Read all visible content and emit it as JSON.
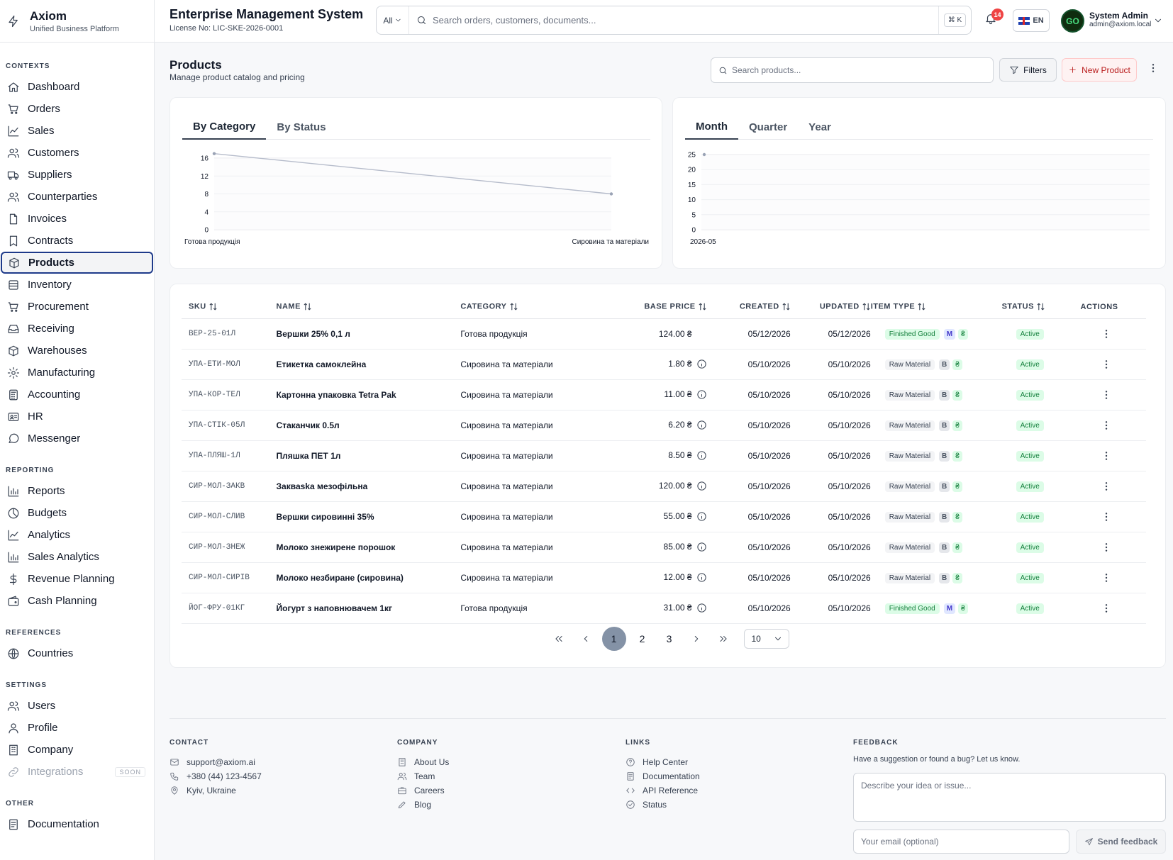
{
  "brand": {
    "name": "Axiom",
    "subtitle": "Unified Business Platform"
  },
  "header": {
    "title": "Enterprise Management System",
    "license": "License No: LIC-SKE-2026-0001",
    "search_scope": "All",
    "search_placeholder": "Search orders, customers, documents...",
    "shortcut": "⌘ K",
    "notifications": "14",
    "language": "EN",
    "user_name": "System Admin",
    "user_email": "admin@axiom.local",
    "avatar_text": "GO"
  },
  "sidebar": {
    "sections": [
      {
        "title": "CONTEXTS",
        "items": [
          {
            "label": "Dashboard",
            "icon": "home-icon"
          },
          {
            "label": "Orders",
            "icon": "cart-icon"
          },
          {
            "label": "Sales",
            "icon": "trend-icon"
          },
          {
            "label": "Customers",
            "icon": "users-icon"
          },
          {
            "label": "Suppliers",
            "icon": "truck-icon"
          },
          {
            "label": "Counterparties",
            "icon": "users-icon"
          },
          {
            "label": "Invoices",
            "icon": "file-icon"
          },
          {
            "label": "Contracts",
            "icon": "bookmark-icon"
          },
          {
            "label": "Products",
            "icon": "box-icon",
            "active": true
          },
          {
            "label": "Inventory",
            "icon": "database-icon"
          },
          {
            "label": "Procurement",
            "icon": "cart-icon"
          },
          {
            "label": "Receiving",
            "icon": "inbox-icon"
          },
          {
            "label": "Warehouses",
            "icon": "box-icon"
          },
          {
            "label": "Manufacturing",
            "icon": "gear-icon"
          },
          {
            "label": "Accounting",
            "icon": "calculator-icon"
          },
          {
            "label": "HR",
            "icon": "id-card-icon"
          },
          {
            "label": "Messenger",
            "icon": "chat-icon"
          }
        ]
      },
      {
        "title": "REPORTING",
        "items": [
          {
            "label": "Reports",
            "icon": "bar-chart-icon"
          },
          {
            "label": "Budgets",
            "icon": "pie-icon"
          },
          {
            "label": "Analytics",
            "icon": "trend-icon"
          },
          {
            "label": "Sales Analytics",
            "icon": "bar-chart-icon"
          },
          {
            "label": "Revenue Planning",
            "icon": "dollar-icon"
          },
          {
            "label": "Cash Planning",
            "icon": "wallet-icon"
          }
        ]
      },
      {
        "title": "REFERENCES",
        "items": [
          {
            "label": "Countries",
            "icon": "globe-icon"
          }
        ]
      },
      {
        "title": "SETTINGS",
        "items": [
          {
            "label": "Users",
            "icon": "users-icon"
          },
          {
            "label": "Profile",
            "icon": "user-icon"
          },
          {
            "label": "Company",
            "icon": "building-icon"
          },
          {
            "label": "Integrations",
            "icon": "link-icon",
            "disabled": true,
            "badge": "SOON"
          }
        ]
      },
      {
        "title": "OTHER",
        "items": [
          {
            "label": "Documentation",
            "icon": "doc-icon"
          }
        ]
      }
    ]
  },
  "page": {
    "title": "Products",
    "subtitle": "Manage product catalog and pricing",
    "search_placeholder": "Search products...",
    "filters_label": "Filters",
    "new_label": "New Product"
  },
  "charts": {
    "left_tabs": [
      "By Category",
      "By Status"
    ],
    "right_tabs": [
      "Month",
      "Quarter",
      "Year"
    ]
  },
  "chart_data": [
    {
      "type": "line",
      "categories": [
        "Готова продукція",
        "Сировина та матеріали"
      ],
      "values": [
        17,
        8
      ],
      "yticks": [
        0,
        4,
        8,
        12,
        16
      ],
      "ylim": [
        0,
        16
      ],
      "grid": true
    },
    {
      "type": "line",
      "categories": [
        "2026-05"
      ],
      "values": [
        25
      ],
      "yticks": [
        0,
        5,
        10,
        15,
        20,
        25
      ],
      "ylim": [
        0,
        25
      ],
      "grid": true
    }
  ],
  "table": {
    "columns": [
      "SKU",
      "NAME",
      "CATEGORY",
      "BASE PRICE",
      "CREATED",
      "UPDATED",
      "ITEM TYPE",
      "STATUS",
      "ACTIONS"
    ],
    "rows": [
      {
        "sku": "ВЕР-25-01Л",
        "name": "Вершки 25% 0,1 л",
        "category": "Готова продукція",
        "price": "124.00 ₴",
        "info": false,
        "created": "05/12/2026",
        "updated": "05/12/2026",
        "type": "Finished Good",
        "type_code": "M",
        "currency": "₴",
        "status": "Active"
      },
      {
        "sku": "УПА-ЕТИ-МОЛ",
        "name": "Етикетка самоклейна",
        "category": "Сировина та матеріали",
        "price": "1.80 ₴",
        "info": true,
        "created": "05/10/2026",
        "updated": "05/10/2026",
        "type": "Raw Material",
        "type_code": "B",
        "currency": "₴",
        "status": "Active"
      },
      {
        "sku": "УПА-КОР-ТЕЛ",
        "name": "Картонна упаковка Tetra Pak",
        "category": "Сировина та матеріали",
        "price": "11.00 ₴",
        "info": true,
        "created": "05/10/2026",
        "updated": "05/10/2026",
        "type": "Raw Material",
        "type_code": "B",
        "currency": "₴",
        "status": "Active"
      },
      {
        "sku": "УПА-СТІК-05Л",
        "name": "Стаканчик 0.5л",
        "category": "Сировина та матеріали",
        "price": "6.20 ₴",
        "info": true,
        "created": "05/10/2026",
        "updated": "05/10/2026",
        "type": "Raw Material",
        "type_code": "B",
        "currency": "₴",
        "status": "Active"
      },
      {
        "sku": "УПА-ПЛЯШ-1Л",
        "name": "Пляшка ПЕТ 1л",
        "category": "Сировина та матеріали",
        "price": "8.50 ₴",
        "info": true,
        "created": "05/10/2026",
        "updated": "05/10/2026",
        "type": "Raw Material",
        "type_code": "B",
        "currency": "₴",
        "status": "Active"
      },
      {
        "sku": "СИР-МОЛ-ЗАКВ",
        "name": "Закваska мезофільна",
        "category": "Сировина та матеріали",
        "price": "120.00 ₴",
        "info": true,
        "created": "05/10/2026",
        "updated": "05/10/2026",
        "type": "Raw Material",
        "type_code": "B",
        "currency": "₴",
        "status": "Active"
      },
      {
        "sku": "СИР-МОЛ-СЛИВ",
        "name": "Вершки сировинні 35%",
        "category": "Сировина та матеріали",
        "price": "55.00 ₴",
        "info": true,
        "created": "05/10/2026",
        "updated": "05/10/2026",
        "type": "Raw Material",
        "type_code": "B",
        "currency": "₴",
        "status": "Active"
      },
      {
        "sku": "СИР-МОЛ-ЗНЕЖ",
        "name": "Молоко знежирене порошок",
        "category": "Сировина та матеріали",
        "price": "85.00 ₴",
        "info": true,
        "created": "05/10/2026",
        "updated": "05/10/2026",
        "type": "Raw Material",
        "type_code": "B",
        "currency": "₴",
        "status": "Active"
      },
      {
        "sku": "СИР-МОЛ-СИРІВ",
        "name": "Молоко незбиране (сировина)",
        "category": "Сировина та матеріали",
        "price": "12.00 ₴",
        "info": true,
        "created": "05/10/2026",
        "updated": "05/10/2026",
        "type": "Raw Material",
        "type_code": "B",
        "currency": "₴",
        "status": "Active"
      },
      {
        "sku": "ЙОГ-ФРУ-01КГ",
        "name": "Йогурт з наповнювачем 1кг",
        "category": "Готова продукція",
        "price": "31.00 ₴",
        "info": true,
        "created": "05/10/2026",
        "updated": "05/10/2026",
        "type": "Finished Good",
        "type_code": "M",
        "currency": "₴",
        "status": "Active"
      }
    ]
  },
  "pagination": {
    "pages": [
      "1",
      "2",
      "3"
    ],
    "current": "1",
    "page_size": "10"
  },
  "footer": {
    "contact": {
      "title": "CONTACT",
      "email": "support@axiom.ai",
      "phone": "+380 (44) 123-4567",
      "location": "Kyiv, Ukraine"
    },
    "company": {
      "title": "COMPANY",
      "links": [
        "About Us",
        "Team",
        "Careers",
        "Blog"
      ]
    },
    "links": {
      "title": "LINKS",
      "links": [
        "Help Center",
        "Documentation",
        "API Reference",
        "Status"
      ]
    },
    "feedback": {
      "title": "FEEDBACK",
      "text": "Have a suggestion or found a bug? Let us know.",
      "placeholder": "Describe your idea or issue...",
      "email_placeholder": "Your email (optional)",
      "send_label": "Send feedback"
    }
  }
}
